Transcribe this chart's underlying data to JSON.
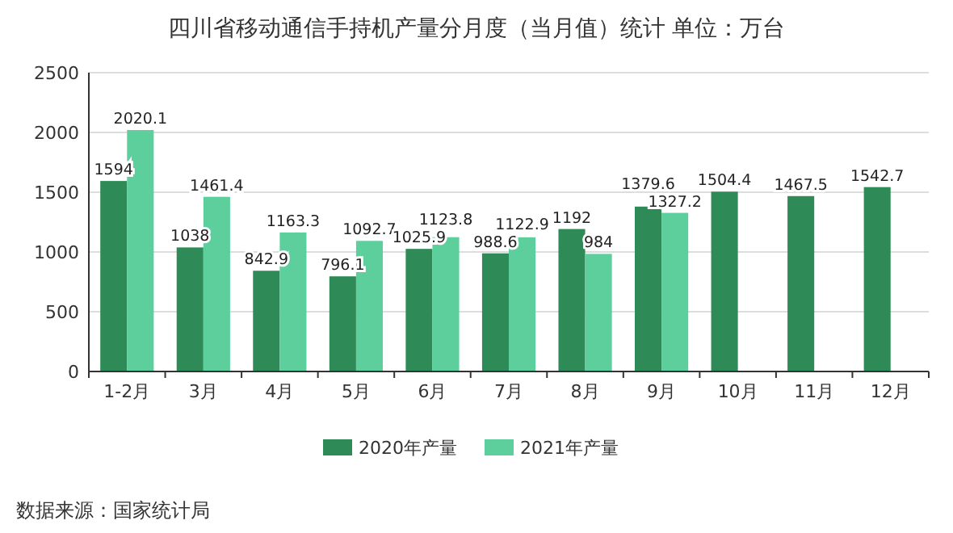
{
  "chart_data": {
    "type": "bar",
    "title": "四川省移动通信手持机产量分月度（当月值）统计 单位：万台",
    "categories": [
      "1-2月",
      "3月",
      "4月",
      "5月",
      "6月",
      "7月",
      "8月",
      "9月",
      "10月",
      "11月",
      "12月"
    ],
    "series": [
      {
        "name": "2020年产量",
        "color": "#2e8b57",
        "values": [
          1594,
          1038,
          842.9,
          796.1,
          1025.9,
          988.6,
          1192,
          1379.6,
          1504.4,
          1467.5,
          1542.7
        ]
      },
      {
        "name": "2021年产量",
        "color": "#5ccf9c",
        "values": [
          2020.1,
          1461.4,
          1163.3,
          1092.7,
          1123.8,
          1122.9,
          984,
          1327.2,
          null,
          null,
          null
        ]
      }
    ],
    "ylim": [
      0,
      2500
    ],
    "yticks": [
      0,
      500,
      1000,
      1500,
      2000,
      2500
    ],
    "grid": "y",
    "legend": "bottom",
    "data_labels": true,
    "annotations": [
      "数据来源：国家统计局"
    ]
  }
}
